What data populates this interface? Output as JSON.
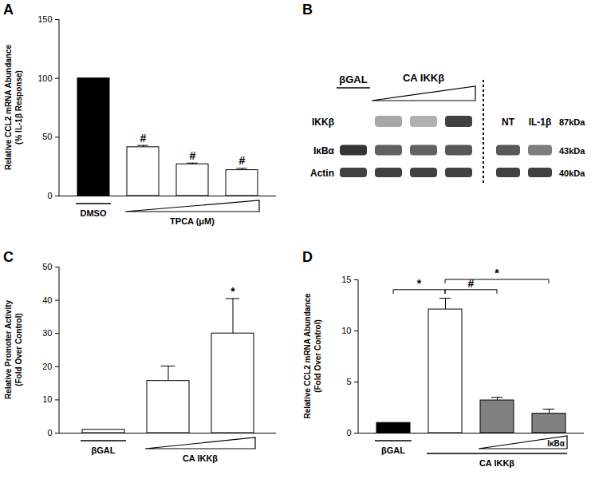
{
  "chart_data": [
    {
      "panel": "A",
      "type": "bar",
      "y_label": [
        "Relative CCL2 mRNA Abundance",
        "(% IL-1β Response)"
      ],
      "categories": [
        null,
        null,
        null,
        null
      ],
      "values": [
        100,
        41.5,
        27,
        22
      ],
      "errors": [
        null,
        1.5,
        1,
        1.5
      ],
      "colors": [
        "#000000",
        "#ffffff",
        "#ffffff",
        "#ffffff"
      ],
      "significance": [
        null,
        "#",
        "#",
        "#"
      ],
      "groups": [
        {
          "label": "DMSO",
          "from": 0,
          "to": 0,
          "shape": "line"
        },
        {
          "label": "TPCA (μM)",
          "from": 1,
          "to": 3,
          "shape": "triangle"
        }
      ],
      "ylim": [
        0,
        150
      ],
      "yticks": [
        0,
        50,
        100,
        150
      ]
    },
    {
      "panel": "B",
      "type": "blot",
      "lane_groups": [
        {
          "label": "βGAL",
          "from": 0,
          "to": 0,
          "shape": "line"
        },
        {
          "label": "CA IKKβ",
          "from": 1,
          "to": 3,
          "shape": "triangle"
        },
        {
          "label": "NT",
          "from": 4,
          "to": 4
        },
        {
          "label": "IL-1β",
          "from": 5,
          "to": 5
        }
      ],
      "divider_after": 3,
      "rows": [
        {
          "label": "IKKβ",
          "size": "87kDa",
          "intensity": [
            0,
            0.35,
            0.3,
            0.85,
            0,
            0
          ]
        },
        {
          "label": "IκBα",
          "size": "43kDa",
          "intensity": [
            0.9,
            0.7,
            0.7,
            0.75,
            0.75,
            0.55
          ]
        },
        {
          "label": "Actin",
          "size": "40kDa",
          "intensity": [
            0.85,
            0.85,
            0.85,
            0.85,
            0.85,
            0.85
          ]
        }
      ]
    },
    {
      "panel": "C",
      "type": "bar",
      "y_label": [
        "Relative Promoter Activity",
        "(Fold Over Control)"
      ],
      "categories": [
        null,
        null,
        null
      ],
      "values": [
        1,
        15.7,
        30
      ],
      "errors": [
        null,
        4.5,
        10.5
      ],
      "colors": [
        "#ffffff",
        "#ffffff",
        "#ffffff"
      ],
      "significance": [
        null,
        null,
        "*"
      ],
      "groups": [
        {
          "label": "βGAL",
          "from": 0,
          "to": 0,
          "shape": "line"
        },
        {
          "label": "CA IKKβ",
          "from": 1,
          "to": 2,
          "shape": "triangle"
        }
      ],
      "ylim": [
        0,
        50
      ],
      "yticks": [
        0,
        10,
        20,
        30,
        40,
        50
      ]
    },
    {
      "panel": "D",
      "type": "bar",
      "y_label": [
        "Relative CCL2 mRNA Abundance",
        "(Fold Over Control)"
      ],
      "categories": [
        null,
        null,
        null,
        null
      ],
      "values": [
        1,
        12.1,
        3.2,
        1.9
      ],
      "errors": [
        null,
        1.1,
        0.3,
        0.45
      ],
      "colors": [
        "#000000",
        "#ffffff",
        "#808080",
        "#808080"
      ],
      "groups": [
        {
          "label": "βGAL",
          "from": 0,
          "to": 0,
          "shape": "line"
        },
        {
          "label": "CA IKKβ",
          "from": 1,
          "to": 3,
          "shape": "line"
        },
        {
          "label": "IκBα",
          "from": 2,
          "to": 3,
          "shape": "triangle"
        }
      ],
      "comparisons": [
        {
          "from": 0,
          "to": 1,
          "y": 14,
          "label": "*"
        },
        {
          "from": 1,
          "to": 2,
          "y": 14,
          "label": "#"
        },
        {
          "from": 1,
          "to": 3,
          "y": 15,
          "label": "*"
        }
      ],
      "ylim": [
        0,
        15
      ],
      "yticks": [
        0,
        5,
        10,
        15
      ]
    }
  ]
}
